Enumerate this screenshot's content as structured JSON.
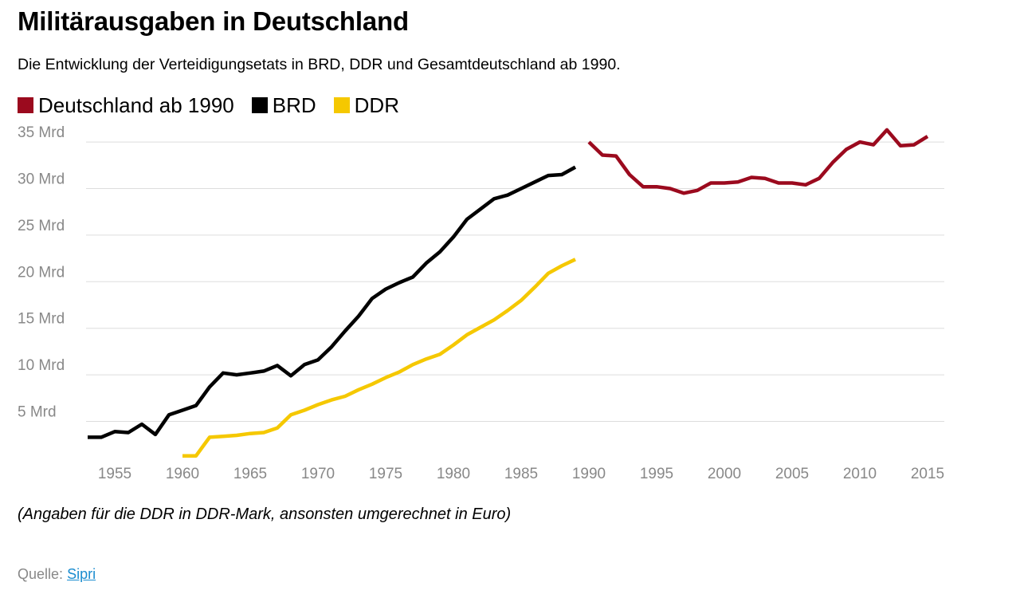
{
  "header": {
    "title": "Militärausgaben in Deutschland",
    "subtitle": "Die Entwicklung der Verteidigungsetats in BRD, DDR und Gesamtdeutschland ab 1990."
  },
  "footer": {
    "note": "(Angaben für die DDR in DDR-Mark, ansonsten umgerechnet in Euro)",
    "source_label": "Quelle:",
    "source_link": "Sipri"
  },
  "chart_data": {
    "type": "line",
    "title": "Militärausgaben in Deutschland",
    "subtitle": "Die Entwicklung der Verteidigungsetats in BRD, DDR und Gesamtdeutschland ab 1990.",
    "xlabel": "",
    "ylabel": "",
    "xlim": [
      1952,
      2016
    ],
    "ylim": [
      0,
      36
    ],
    "grid": true,
    "legend_position": "top-left",
    "x_ticks": [
      1955,
      1960,
      1965,
      1970,
      1975,
      1980,
      1985,
      1990,
      1995,
      2000,
      2005,
      2010,
      2015
    ],
    "x_tick_labels": [
      "1955",
      "1960",
      "1965",
      "1970",
      "1975",
      "1980",
      "1985",
      "1990",
      "1995",
      "2000",
      "2005",
      "2010",
      "2015"
    ],
    "y_ticks": [
      5,
      10,
      15,
      20,
      25,
      30,
      35
    ],
    "y_tick_labels": [
      "5 Mrd",
      "10 Mrd",
      "15 Mrd",
      "20 Mrd",
      "25 Mrd",
      "30 Mrd",
      "35 Mrd"
    ],
    "series": [
      {
        "name": "Deutschland ab 1990",
        "color": "#9b0a1e",
        "x": [
          1990,
          1991,
          1992,
          1993,
          1994,
          1995,
          1996,
          1997,
          1998,
          1999,
          2000,
          2001,
          2002,
          2003,
          2004,
          2005,
          2006,
          2007,
          2008,
          2009,
          2010,
          2011,
          2012,
          2013,
          2014,
          2015
        ],
        "y": [
          35.0,
          33.6,
          33.5,
          31.5,
          30.2,
          30.2,
          30.0,
          29.5,
          29.8,
          30.6,
          30.6,
          30.7,
          31.2,
          31.1,
          30.6,
          30.6,
          30.4,
          31.1,
          32.8,
          34.2,
          35.0,
          34.7,
          36.3,
          34.6,
          34.7,
          35.6
        ]
      },
      {
        "name": "BRD",
        "color": "#000000",
        "x": [
          1953,
          1954,
          1955,
          1956,
          1957,
          1958,
          1959,
          1960,
          1961,
          1962,
          1963,
          1964,
          1965,
          1966,
          1967,
          1968,
          1969,
          1970,
          1971,
          1972,
          1973,
          1974,
          1975,
          1976,
          1977,
          1978,
          1979,
          1980,
          1981,
          1982,
          1983,
          1984,
          1985,
          1986,
          1987,
          1988,
          1989
        ],
        "y": [
          3.3,
          3.3,
          3.9,
          3.8,
          4.7,
          3.6,
          5.7,
          6.2,
          6.7,
          8.7,
          10.2,
          10.0,
          10.2,
          10.4,
          11.0,
          9.9,
          11.1,
          11.6,
          13.0,
          14.7,
          16.3,
          18.2,
          19.2,
          19.9,
          20.5,
          22.0,
          23.2,
          24.8,
          26.7,
          27.8,
          28.9,
          29.3,
          30.0,
          30.7,
          31.4,
          31.5,
          32.3
        ]
      },
      {
        "name": "DDR",
        "color": "#f5c800",
        "x": [
          1960,
          1961,
          1962,
          1963,
          1964,
          1965,
          1966,
          1967,
          1968,
          1969,
          1970,
          1971,
          1972,
          1973,
          1974,
          1975,
          1976,
          1977,
          1978,
          1979,
          1980,
          1981,
          1982,
          1983,
          1984,
          1985,
          1986,
          1987,
          1988,
          1989
        ],
        "y": [
          1.3,
          1.3,
          3.3,
          3.4,
          3.5,
          3.7,
          3.8,
          4.3,
          5.7,
          6.2,
          6.8,
          7.3,
          7.7,
          8.4,
          9.0,
          9.7,
          10.3,
          11.1,
          11.7,
          12.2,
          13.2,
          14.3,
          15.1,
          15.9,
          16.9,
          18.0,
          19.4,
          20.9,
          21.7,
          22.4
        ]
      }
    ]
  }
}
